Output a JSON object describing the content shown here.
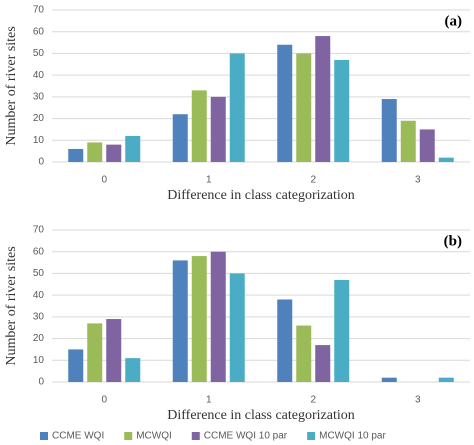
{
  "chart_data": [
    {
      "type": "bar",
      "annotation": "(a)",
      "ylabel": "Number of river sites",
      "xlabel": "Difference in class categorization",
      "categories": [
        "0",
        "1",
        "2",
        "3"
      ],
      "series": [
        {
          "color": "#4f81bd",
          "values": [
            6,
            22,
            54,
            29
          ]
        },
        {
          "color": "#9bbb59",
          "values": [
            9,
            33,
            50,
            19
          ]
        },
        {
          "color": "#8064a2",
          "values": [
            8,
            30,
            58,
            15
          ]
        },
        {
          "color": "#4bacc6",
          "values": [
            12,
            50,
            47,
            2
          ]
        }
      ],
      "ylim": [
        0,
        70
      ],
      "yticks": [
        0,
        10,
        20,
        30,
        40,
        50,
        60,
        70
      ],
      "grid": true
    },
    {
      "type": "bar",
      "annotation": "(b)",
      "ylabel": "Number of river sites",
      "xlabel": "Difference in class categorization",
      "categories": [
        "0",
        "1",
        "2",
        "3"
      ],
      "series": [
        {
          "name": "CCME WQI",
          "color": "#4f81bd",
          "values": [
            15,
            56,
            38,
            2
          ]
        },
        {
          "name": "MCWQI",
          "color": "#9bbb59",
          "values": [
            27,
            58,
            26,
            0
          ]
        },
        {
          "name": "CCME WQI 10 par",
          "color": "#8064a2",
          "values": [
            29,
            60,
            17,
            0
          ]
        },
        {
          "name": "MCWQI 10 par",
          "color": "#4bacc6",
          "values": [
            11,
            50,
            47,
            2
          ]
        }
      ],
      "ylim": [
        0,
        70
      ],
      "yticks": [
        0,
        10,
        20,
        30,
        40,
        50,
        60,
        70
      ],
      "grid": true,
      "legend": "bottom"
    }
  ]
}
